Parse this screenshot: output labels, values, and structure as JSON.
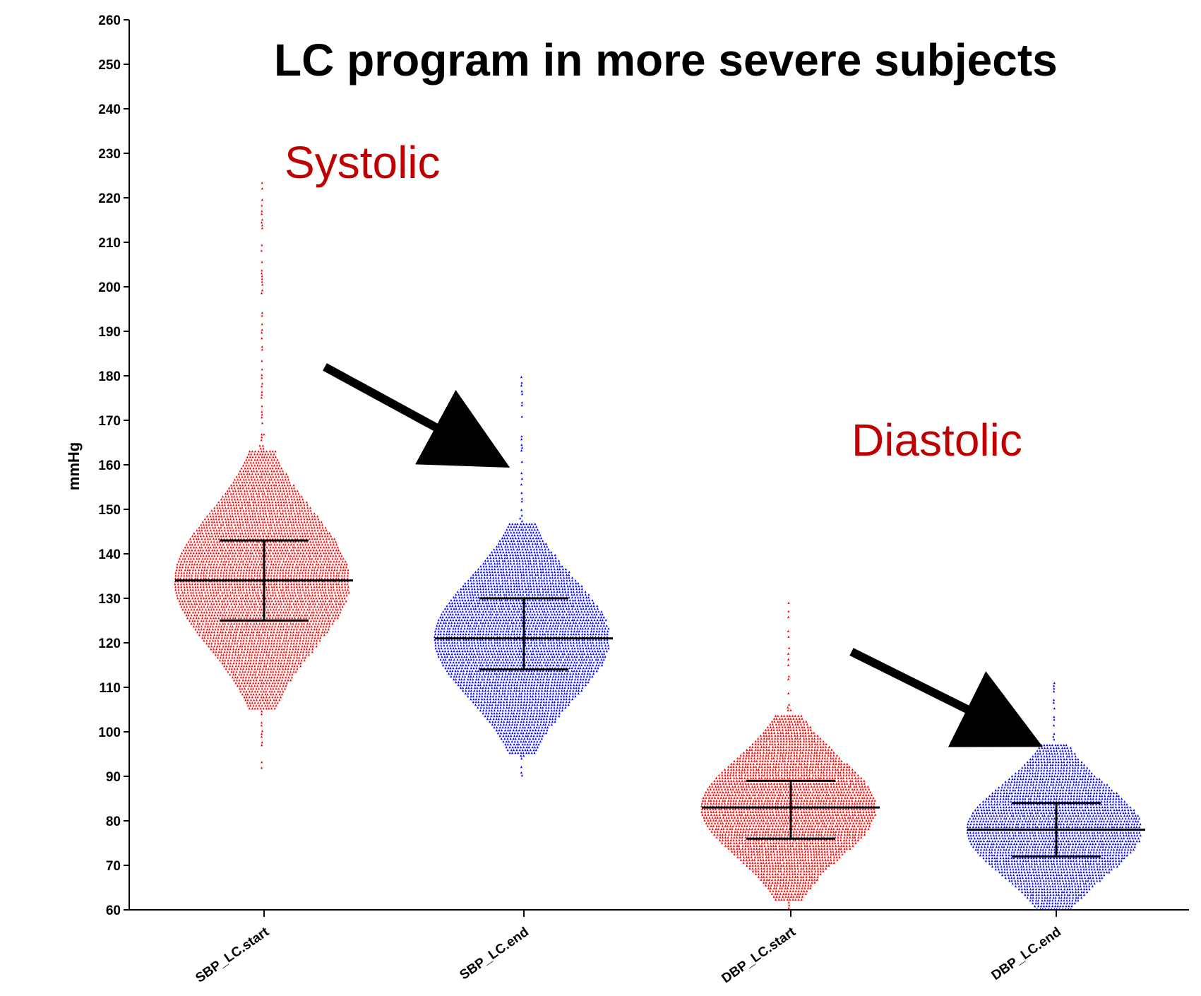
{
  "chart_data": {
    "type": "scatter",
    "title": "LC program in more severe subjects",
    "ylabel": "mmHg",
    "xlabel": "",
    "ylim": [
      60,
      260
    ],
    "yticks": [
      60,
      70,
      80,
      90,
      100,
      110,
      120,
      130,
      140,
      150,
      160,
      170,
      180,
      190,
      200,
      210,
      220,
      230,
      240,
      250,
      260
    ],
    "categories": [
      "SBP_LC.start",
      "SBP_LC.end",
      "DBP_LC.start",
      "DBP_LC.end"
    ],
    "series": [
      {
        "category": "SBP_LC.start",
        "color": "#ff0000",
        "min": 89,
        "max": 224,
        "mean": 134,
        "sd_low": 125,
        "sd_high": 143
      },
      {
        "category": "SBP_LC.end",
        "color": "#0000ff",
        "min": 90,
        "max": 181,
        "mean": 121,
        "sd_low": 114,
        "sd_high": 130
      },
      {
        "category": "DBP_LC.start",
        "color": "#ff0000",
        "min": 60,
        "max": 129,
        "mean": 83,
        "sd_low": 76,
        "sd_high": 89
      },
      {
        "category": "DBP_LC.end",
        "color": "#0000ff",
        "min": 60,
        "max": 111,
        "mean": 78,
        "sd_low": 72,
        "sd_high": 84
      }
    ],
    "annotations": [
      {
        "text": "Systolic",
        "color": "#c00000"
      },
      {
        "text": "Diastolic",
        "color": "#c00000"
      }
    ],
    "arrows": [
      {
        "from_category": "SBP_LC.start",
        "to_category": "SBP_LC.end",
        "from_value": 182,
        "to_value": 163
      },
      {
        "from_category": "DBP_LC.start",
        "to_category": "DBP_LC.end",
        "from_value": 118,
        "to_value": 100
      }
    ],
    "grid": false,
    "legend": "none"
  }
}
